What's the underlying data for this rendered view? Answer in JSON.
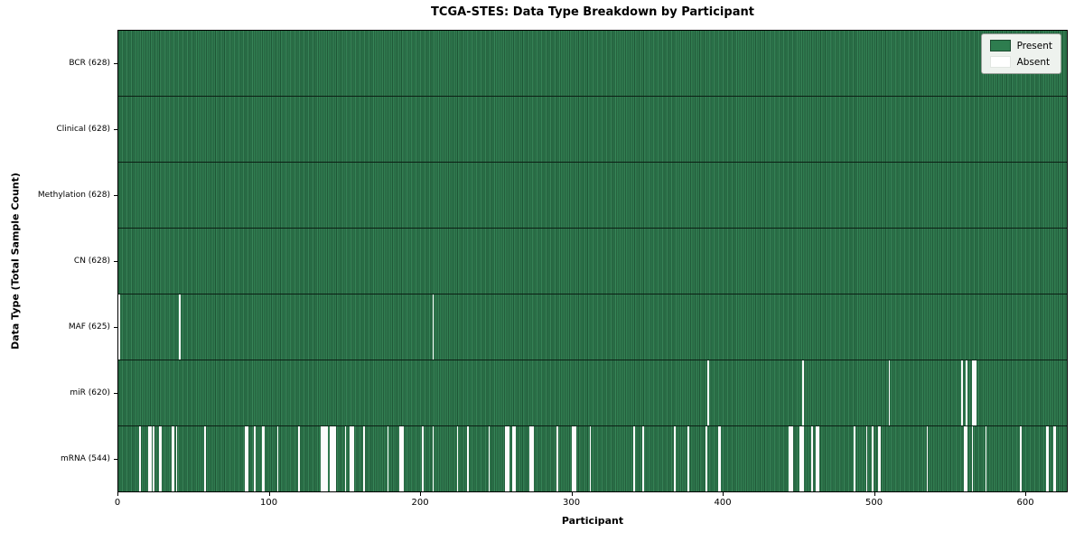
{
  "chart_data": {
    "type": "heatmap",
    "title": "TCGA-STES: Data Type Breakdown by Participant",
    "xlabel": "Participant",
    "ylabel": "Data Type (Total Sample Count)",
    "n_participants": 628,
    "x_ticks": [
      0,
      100,
      200,
      300,
      400,
      500,
      600
    ],
    "legend": {
      "present_label": "Present",
      "absent_label": "Absent",
      "position": "upper right"
    },
    "colors": {
      "present": "#2e7d4f",
      "present_edge": "#1c4c30",
      "absent": "#ffffff",
      "row_divider": "#0b1f14",
      "plot_border": "#000000",
      "legend_bg": "#eef2ee"
    },
    "rows": [
      {
        "name": "BCR",
        "total": 628,
        "label": "BCR (628)",
        "absent_participants": []
      },
      {
        "name": "Clinical",
        "total": 628,
        "label": "Clinical (628)",
        "absent_participants": []
      },
      {
        "name": "Methylation",
        "total": 628,
        "label": "Methylation (628)",
        "absent_participants": []
      },
      {
        "name": "CN",
        "total": 628,
        "label": "CN (628)",
        "absent_participants": []
      },
      {
        "name": "MAF",
        "total": 625,
        "label": "MAF (625)",
        "absent_participants": [
          0,
          40,
          208
        ]
      },
      {
        "name": "miR",
        "total": 620,
        "label": "miR (620)",
        "absent_participants": [
          390,
          453,
          510,
          558,
          561,
          565,
          566,
          567
        ]
      },
      {
        "name": "mRNA",
        "total": 544,
        "label": "mRNA (544)",
        "absent_participants": [
          14,
          20,
          21,
          23,
          27,
          28,
          35,
          36,
          38,
          57,
          84,
          85,
          90,
          95,
          96,
          105,
          119,
          134,
          135,
          136,
          137,
          138,
          140,
          141,
          142,
          143,
          150,
          153,
          154,
          155,
          162,
          178,
          186,
          187,
          188,
          201,
          208,
          224,
          231,
          245,
          256,
          257,
          258,
          261,
          262,
          272,
          273,
          274,
          290,
          300,
          301,
          302,
          312,
          341,
          347,
          368,
          377,
          389,
          397,
          398,
          444,
          445,
          446,
          451,
          452,
          453,
          459,
          462,
          463,
          487,
          495,
          499,
          503,
          504,
          535,
          560,
          561,
          565,
          574,
          597,
          614,
          615,
          619,
          620
        ]
      }
    ]
  }
}
